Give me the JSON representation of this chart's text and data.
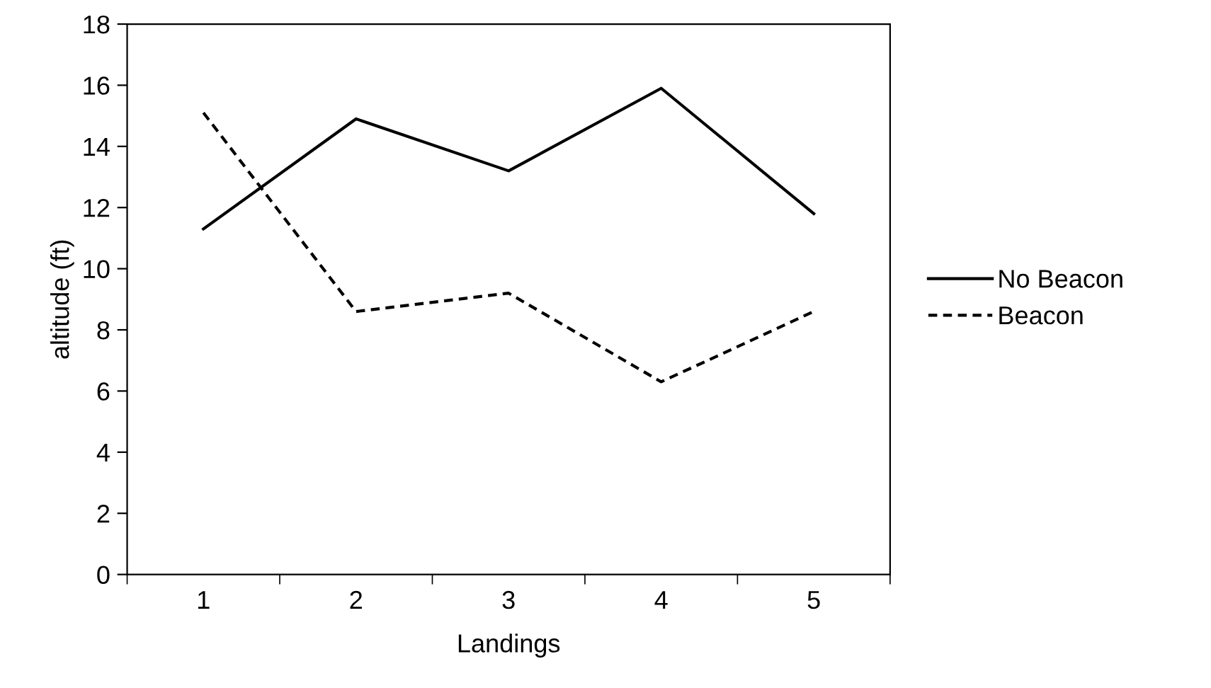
{
  "chart_data": {
    "type": "line",
    "xlabel": "Landings",
    "ylabel": "altitude (ft)",
    "categories": [
      "1",
      "2",
      "3",
      "4",
      "5"
    ],
    "series": [
      {
        "name": "No Beacon",
        "color": "#000000",
        "line_style": "solid",
        "values": [
          11.3,
          14.9,
          13.2,
          15.9,
          11.8
        ]
      },
      {
        "name": "Beacon",
        "color": "#000000",
        "line_style": "dashed",
        "values": [
          15.1,
          8.6,
          9.2,
          6.3,
          8.6
        ]
      }
    ],
    "ylim": [
      0,
      18
    ],
    "yticks": [
      0,
      2,
      4,
      6,
      8,
      10,
      12,
      14,
      16,
      18
    ],
    "grid": false,
    "legend": "right",
    "marker": "none"
  }
}
